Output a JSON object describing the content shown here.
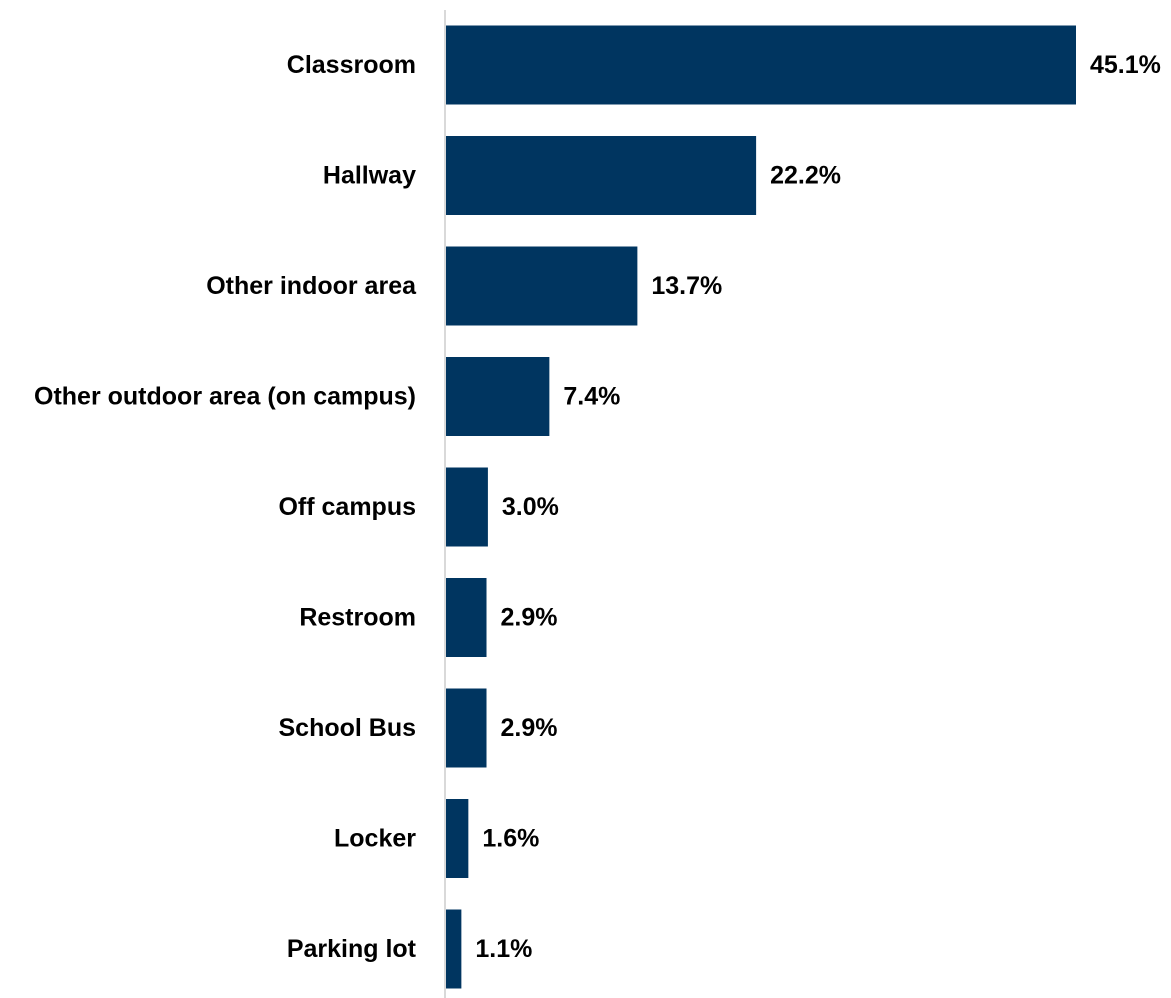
{
  "chart_data": {
    "type": "bar",
    "orientation": "horizontal",
    "categories": [
      "Classroom",
      "Hallway",
      "Other indoor area",
      "Other outdoor area (on campus)",
      "Off campus",
      "Restroom",
      "School Bus",
      "Locker",
      "Parking lot"
    ],
    "values": [
      45.1,
      22.2,
      13.7,
      7.4,
      3.0,
      2.9,
      2.9,
      1.6,
      1.1
    ],
    "value_labels": [
      "45.1%",
      "22.2%",
      "13.7%",
      "7.4%",
      "3.0%",
      "2.9%",
      "2.9%",
      "1.6%",
      "1.1%"
    ],
    "title": "",
    "xlabel": "",
    "ylabel": "",
    "xlim": [
      0,
      45.1
    ],
    "grid": false,
    "legend": "none",
    "bar_color": "#003560",
    "axis_color": "#d9d9d9"
  }
}
